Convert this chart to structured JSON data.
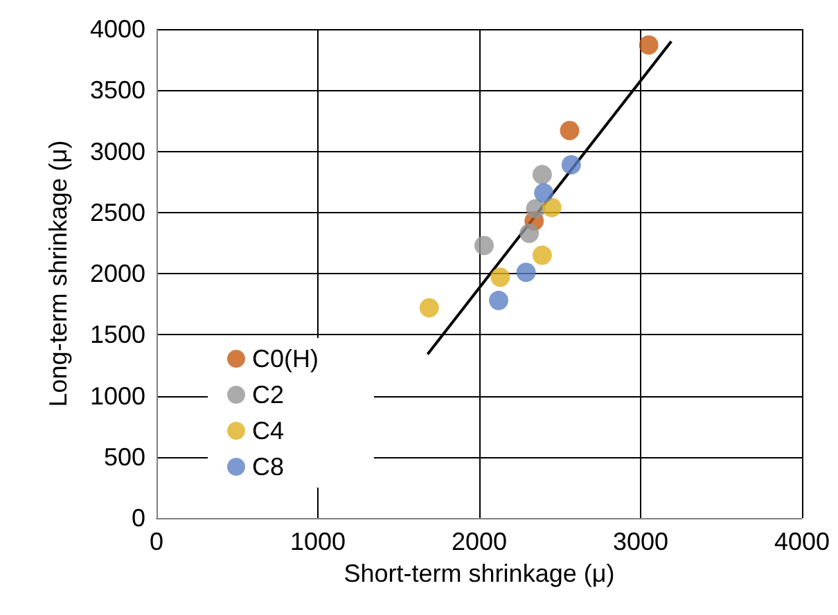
{
  "chart_data": {
    "type": "scatter",
    "xlabel": "Short-term shrinkage (μ)",
    "ylabel": "Long-term shrinkage (μ)",
    "xlim": [
      0,
      4000
    ],
    "xticks": [
      0,
      1000,
      2000,
      3000,
      4000
    ],
    "ylim": [
      0,
      4000
    ],
    "yticks": [
      0,
      500,
      1000,
      1500,
      2000,
      2500,
      3000,
      3500,
      4000
    ],
    "grid": true,
    "legend": "bottom left",
    "marker": "circle",
    "series": [
      {
        "name": "C0(H)",
        "color": "#c55a11",
        "x": [
          3050,
          2560,
          2440,
          2340
        ],
        "values": [
          3870,
          3170,
          null,
          2430
        ]
      },
      {
        "name": "C2",
        "color": "#969696",
        "x": [
          2390,
          2350,
          2310,
          2030
        ],
        "values": [
          2810,
          2530,
          2330,
          2230
        ]
      },
      {
        "name": "C4",
        "color": "#e0b020",
        "x": [
          2450,
          2390,
          2130,
          1690
        ],
        "values": [
          2540,
          2150,
          1970,
          1720
        ]
      },
      {
        "name": "C8",
        "color": "#5b7fc4",
        "x": [
          2570,
          2400,
          2290,
          2120
        ],
        "values": [
          2890,
          2660,
          2010,
          1780
        ]
      },
      {
        "type": "line",
        "color": "#000000",
        "marker": "none",
        "x": [
          1680,
          3190
        ],
        "values": [
          1340,
          3900
        ]
      }
    ]
  }
}
